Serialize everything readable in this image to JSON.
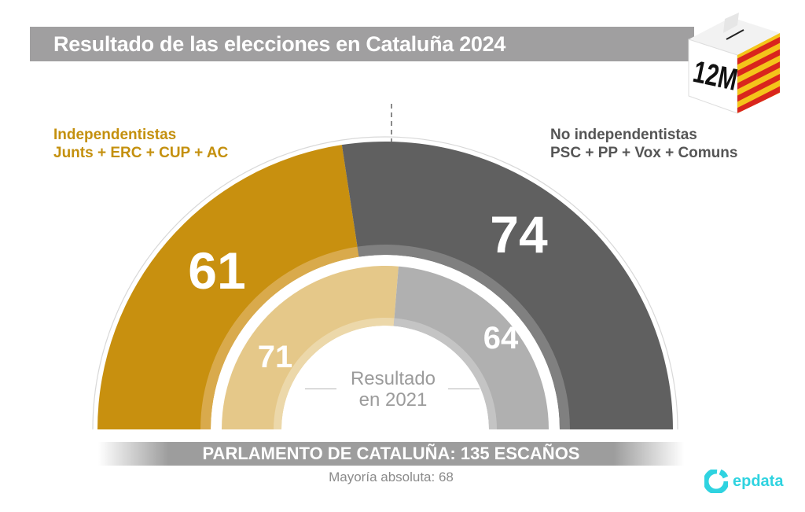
{
  "title": "Resultado de las elecciones en Cataluña 2024",
  "ballot_box": {
    "icon": "ballot-box-icon",
    "label": "12M"
  },
  "colors": {
    "independentistas": "#c8900f",
    "independentistas_2021": "#e5c889",
    "no_independentistas": "#606060",
    "no_independentistas_2021": "#b0b0b0",
    "title_bar": "#a09fa0",
    "logo": "#2fd3e0"
  },
  "groups": {
    "left": {
      "title": "Independentistas",
      "parties": "Junts + ERC + CUP + AC"
    },
    "right": {
      "title": "No independentistas",
      "parties": "PSC + PP + Vox + Comuns"
    }
  },
  "inner_caption": {
    "line1": "Resultado",
    "line2": "en 2021"
  },
  "footer": {
    "parliament": "PARLAMENTO DE CATALUÑA: 135 ESCAÑOS",
    "majority": "Mayoría absoluta: 68"
  },
  "logo": {
    "icon": "epdata-logo-icon",
    "text": "epdata"
  },
  "chart_data": {
    "type": "pie",
    "subtype": "semicircle-parliament",
    "title": "Resultado de las elecciones en Cataluña 2024",
    "total_seats": 135,
    "majority": 68,
    "series": [
      {
        "name": "2024",
        "categories": [
          "Independentistas",
          "No independentistas"
        ],
        "values": [
          61,
          74
        ]
      },
      {
        "name": "2021",
        "categories": [
          "Independentistas",
          "No independentistas"
        ],
        "values": [
          71,
          64
        ]
      }
    ],
    "labels": {
      "outer": [
        "61",
        "74"
      ],
      "inner": [
        "71",
        "64"
      ]
    },
    "annotations": [
      "Resultado en 2021",
      "Mayoría absoluta: 68"
    ]
  }
}
